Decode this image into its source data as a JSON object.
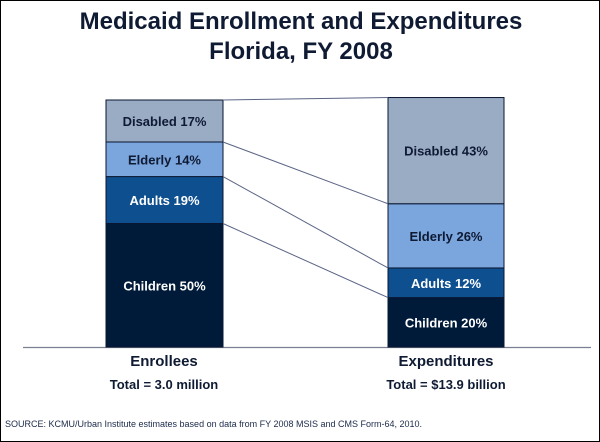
{
  "chart_data": {
    "type": "bar",
    "subtype": "stacked-100-percent",
    "title": "Medicaid Enrollment and Expenditures",
    "subtitle": "Florida, FY 2008",
    "categories": [
      "Enrollees",
      "Expenditures"
    ],
    "totals": [
      "Total = 3.0 million",
      "Total = $13.9 billion"
    ],
    "series": [
      {
        "name": "Children",
        "values": [
          50,
          20
        ],
        "color": "#001a3a",
        "text_color": "#ffffff"
      },
      {
        "name": "Adults",
        "values": [
          19,
          12
        ],
        "color": "#0d4f8f",
        "text_color": "#ffffff"
      },
      {
        "name": "Elderly",
        "values": [
          14,
          26
        ],
        "color": "#7aa5dd",
        "text_color": "#0f1a33"
      },
      {
        "name": "Disabled",
        "values": [
          17,
          43
        ],
        "color": "#9aacc4",
        "text_color": "#0f1a33"
      }
    ],
    "ylim": [
      0,
      100
    ],
    "unit": "%",
    "grid": false,
    "legend": "none",
    "connector_lines": true
  },
  "source": "SOURCE:  KCMU/Urban Institute estimates based on data from FY 2008 MSIS and CMS Form-64,  2010."
}
